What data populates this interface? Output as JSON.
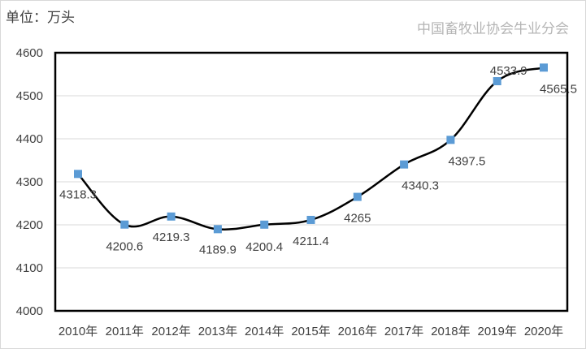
{
  "unit_label": "单位：万头",
  "watermark": "中国畜牧业协会牛业分会",
  "chart_data": {
    "type": "line",
    "title": "",
    "xlabel": "",
    "ylabel": "",
    "categories": [
      "2010年",
      "2011年",
      "2012年",
      "2013年",
      "2014年",
      "2015年",
      "2016年",
      "2017年",
      "2018年",
      "2019年",
      "2020年"
    ],
    "values": [
      4318.3,
      4200.6,
      4219.3,
      4189.9,
      4200.4,
      4211.4,
      4265,
      4340.3,
      4397.5,
      4533.9,
      4565.5
    ],
    "data_labels": [
      "4318.3",
      "4200.6",
      "4219.3",
      "4189.9",
      "4200.4",
      "4211.4",
      "4265",
      "4340.3",
      "4397.5",
      "4533.9",
      "4565.5"
    ],
    "ylim": [
      4000,
      4600
    ],
    "yticks": [
      4000,
      4100,
      4200,
      4300,
      4400,
      4500,
      4600
    ],
    "grid": true,
    "smooth": true,
    "line_color": "#000000",
    "marker_color": "#5b9bd5",
    "marker": "square"
  }
}
